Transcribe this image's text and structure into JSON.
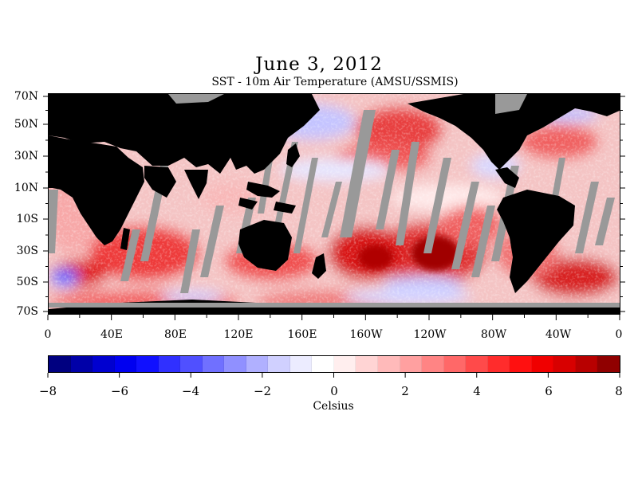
{
  "title": "June 3, 2012",
  "subtitle": "SST - 10m Air Temperature (AMSU/SSMIS)",
  "lat_labels": [
    "70N",
    "50N",
    "30N",
    "10N",
    "10S",
    "30S",
    "50S",
    "70S"
  ],
  "lon_labels": [
    "0",
    "40E",
    "80E",
    "120E",
    "160E",
    "160W",
    "120W",
    "80W",
    "40W",
    "0"
  ],
  "colorbar": {
    "labels": [
      "−8",
      "−6",
      "−4",
      "−2",
      "0",
      "2",
      "4",
      "6",
      "8"
    ],
    "unit": "Celsius",
    "colors": [
      "#000080",
      "#0000a8",
      "#0000d0",
      "#0000f0",
      "#1010ff",
      "#3030ff",
      "#5050ff",
      "#7070ff",
      "#9090ff",
      "#b0b0ff",
      "#d0d0ff",
      "#ececff",
      "#ffffff",
      "#ffeeee",
      "#ffd4d4",
      "#ffbaba",
      "#ffa0a0",
      "#ff8484",
      "#ff6868",
      "#ff4a4a",
      "#ff2c2c",
      "#ff1010",
      "#f00000",
      "#d80000",
      "#b80000",
      "#900000"
    ]
  },
  "colors": {
    "land": "#000000",
    "no_data": "#999999",
    "ocean_base": "#f3c2c2"
  }
}
